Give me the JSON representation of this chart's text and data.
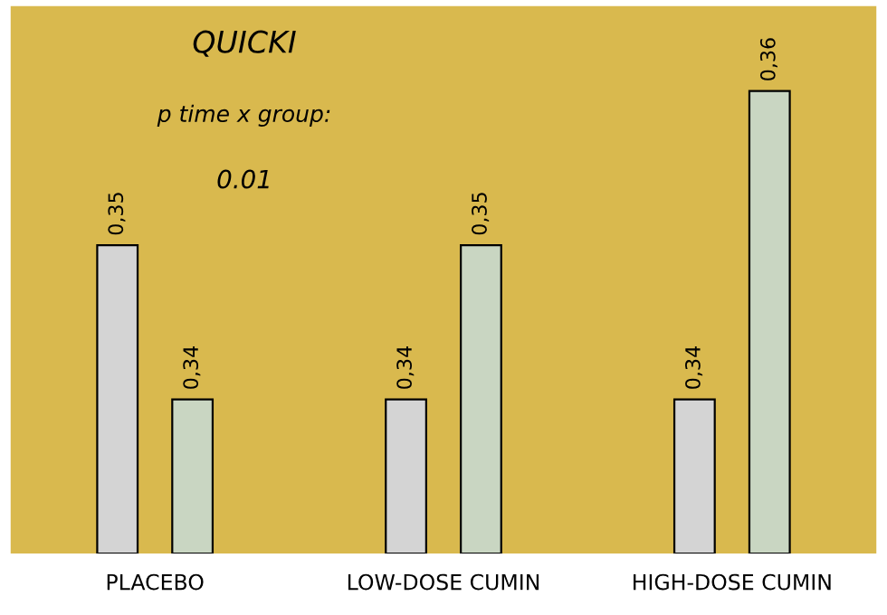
{
  "chart_data": {
    "type": "bar",
    "categories": [
      "PLACEBO",
      "LOW-DOSE CUMIN",
      "HIGH-DOSE CUMIN"
    ],
    "series": [
      {
        "color": "#d4d4d4",
        "values": [
          0.35,
          0.34,
          0.34
        ],
        "value_labels": [
          "0,35",
          "0,34",
          "0,34"
        ]
      },
      {
        "color": "#c9d6c2",
        "values": [
          0.34,
          0.35,
          0.36
        ],
        "value_labels": [
          "0,34",
          "0,35",
          "0,36"
        ]
      }
    ],
    "ylim": [
      0.33,
      0.3655
    ],
    "tick_labels": "x",
    "grid": false,
    "legend": false,
    "annotations": [
      "QUICKI",
      "p time x group:",
      "0.01"
    ]
  }
}
